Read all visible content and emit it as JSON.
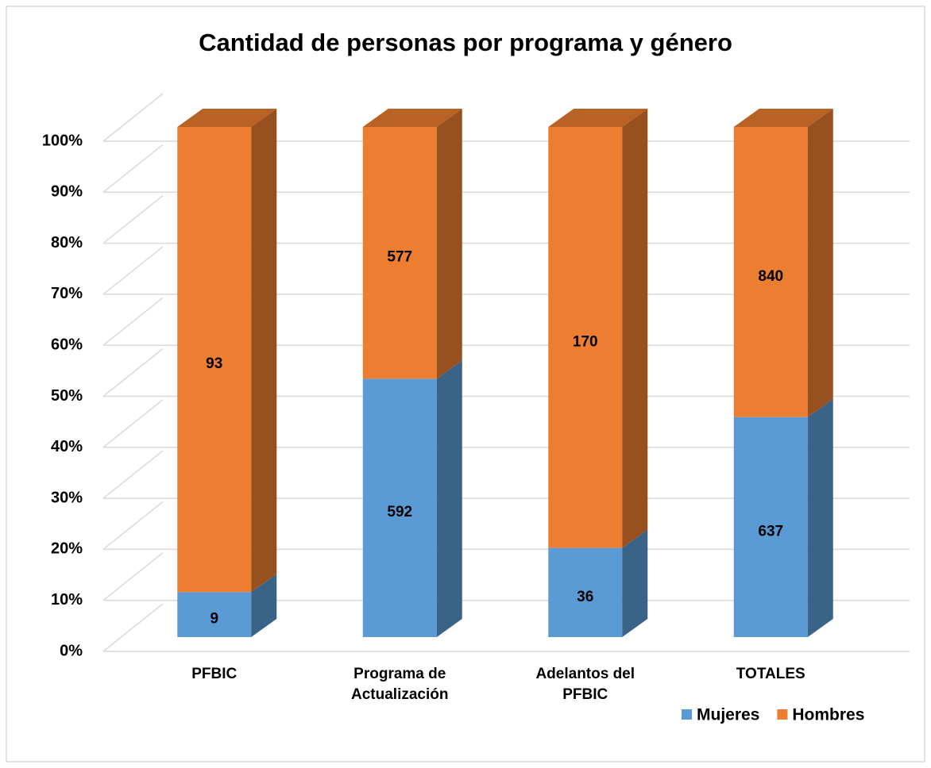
{
  "chart_data": {
    "type": "bar",
    "stacking": "percent",
    "title": "Cantidad de personas por programa y género",
    "categories": [
      "PFBIC",
      "Programa de Actualización",
      "Adelantos del PFBIC",
      "TOTALES"
    ],
    "series": [
      {
        "name": "Mujeres",
        "color": "#5b9bd5",
        "values": [
          9,
          592,
          36,
          637
        ]
      },
      {
        "name": "Hombres",
        "color": "#ed7d31",
        "values": [
          93,
          577,
          170,
          840
        ]
      }
    ],
    "ylim": [
      0,
      100
    ],
    "yticks": [
      {
        "value": 0,
        "label": "0%"
      },
      {
        "value": 10,
        "label": "10%"
      },
      {
        "value": 20,
        "label": "20%"
      },
      {
        "value": 30,
        "label": "30%"
      },
      {
        "value": 40,
        "label": "40%"
      },
      {
        "value": 50,
        "label": "50%"
      },
      {
        "value": 60,
        "label": "60%"
      },
      {
        "value": 70,
        "label": "70%"
      },
      {
        "value": 80,
        "label": "80%"
      },
      {
        "value": 90,
        "label": "90%"
      },
      {
        "value": 100,
        "label": "100%"
      }
    ],
    "grid": true,
    "legend": "bottom-right"
  }
}
